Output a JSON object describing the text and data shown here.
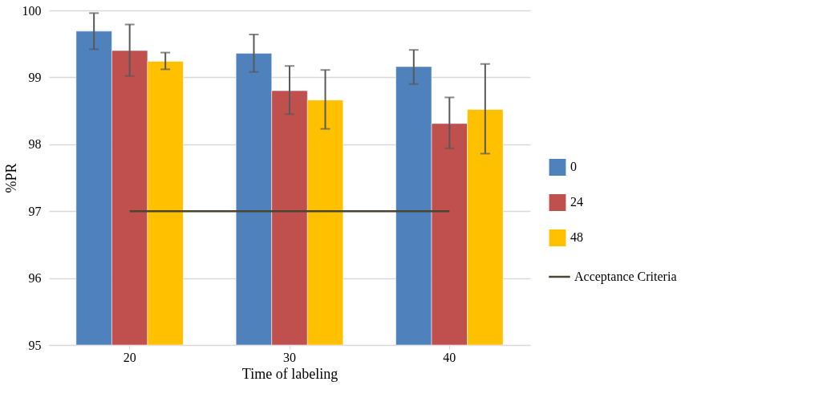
{
  "chart_data": {
    "type": "bar",
    "xlabel": "Time of labeling",
    "ylabel": "%PR",
    "categories": [
      "20",
      "30",
      "40"
    ],
    "series": [
      {
        "name": "0",
        "color": "#4f81bd",
        "values": [
          99.69,
          99.36,
          99.16
        ],
        "errors": [
          [
            99.42,
            99.96
          ],
          [
            99.08,
            99.64
          ],
          [
            98.9,
            99.41
          ]
        ]
      },
      {
        "name": "24",
        "color": "#c0504d",
        "values": [
          99.4,
          98.8,
          98.31
        ],
        "errors": [
          [
            99.02,
            99.79
          ],
          [
            98.45,
            99.17
          ],
          [
            97.94,
            98.7
          ]
        ]
      },
      {
        "name": "48",
        "color": "#ffc000",
        "values": [
          99.24,
          98.66,
          98.52
        ],
        "errors": [
          [
            99.12,
            99.37
          ],
          [
            98.23,
            99.11
          ],
          [
            97.86,
            99.2
          ]
        ]
      },
      {
        "name": "Acceptance Criteria",
        "type": "line",
        "color": "#4a4530",
        "values": [
          97,
          97,
          97
        ]
      }
    ],
    "ylim": [
      95,
      100
    ],
    "yticks": [
      95,
      96,
      97,
      98,
      99,
      100
    ],
    "grid": "y",
    "legend": "right"
  }
}
